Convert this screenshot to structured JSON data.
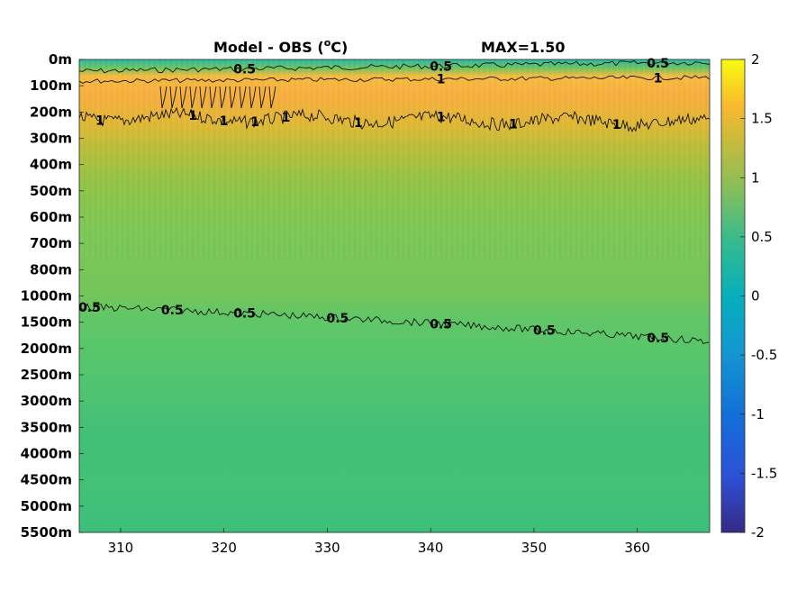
{
  "chart_data": {
    "type": "heatmap",
    "title": "Model - OBS (",
    "title_sup": "o",
    "title_unit": "C)",
    "max_label": "MAX=1.50",
    "x_ticks": [
      310,
      320,
      330,
      340,
      350,
      360
    ],
    "xlim": [
      306,
      367
    ],
    "depth_labels": [
      "0m",
      "100m",
      "200m",
      "300m",
      "400m",
      "500m",
      "600m",
      "700m",
      "800m",
      "1000m",
      "1500m",
      "2000m",
      "2500m",
      "3000m",
      "3500m",
      "4000m",
      "4500m",
      "5000m",
      "5500m"
    ],
    "colorbar": {
      "colormap": "parula",
      "limits": [
        -2,
        2
      ],
      "ticks": [
        "2",
        "1.5",
        "1",
        "0.5",
        "0",
        "-0.5",
        "-1",
        "-1.5",
        "-2"
      ]
    },
    "depth_profile_values": [
      0.35,
      1.3,
      1.05,
      0.92,
      0.82,
      0.76,
      0.72,
      0.7,
      0.7,
      0.68,
      0.55,
      0.48,
      0.42,
      0.36,
      0.33,
      0.35,
      0.38,
      0.4,
      0.36,
      0.35
    ],
    "contours": [
      {
        "level": "0.5",
        "label": "0.5",
        "labels_at_x": [
          322,
          341,
          362
        ]
      },
      {
        "level": "1",
        "label": "1",
        "labels_at_x": [
          341,
          362
        ]
      },
      {
        "level": "1",
        "label": "1",
        "labels_at_x": [
          308,
          317,
          320,
          323,
          326,
          333,
          341,
          348,
          358
        ]
      },
      {
        "level": "0.5",
        "label": "0.5",
        "labels_at_x": [
          307,
          315,
          322,
          331,
          341,
          351,
          362
        ]
      }
    ]
  }
}
